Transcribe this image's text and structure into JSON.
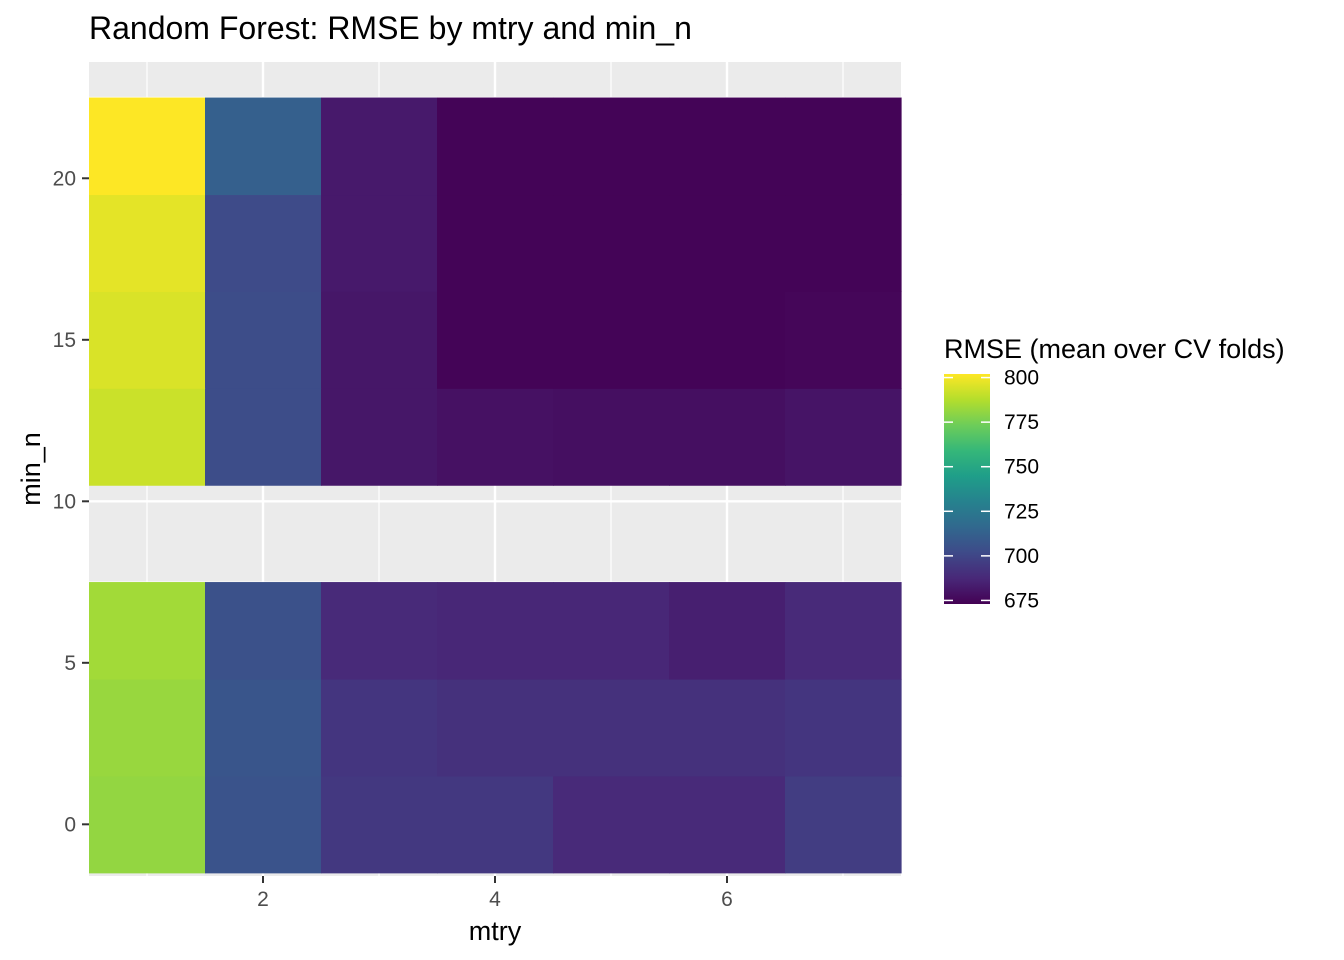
{
  "chart_data": {
    "type": "heatmap",
    "title": "Random Forest: RMSE by mtry and min_n",
    "xlabel": "mtry",
    "ylabel": "min_n",
    "xlim": [
      0.5,
      7.5
    ],
    "ylim": [
      -1.6,
      23.6
    ],
    "x_ticks": [
      2,
      4,
      6
    ],
    "y_ticks": [
      0,
      5,
      10,
      15,
      20
    ],
    "grid": true,
    "colormap": "viridis",
    "color_range": [
      673,
      802
    ],
    "legend": {
      "title": "RMSE (mean over CV folds)",
      "ticks": [
        675,
        700,
        725,
        750,
        775,
        800
      ],
      "placement": "right"
    },
    "x": [
      1,
      2,
      3,
      4,
      5,
      6,
      7
    ],
    "rows": [
      {
        "min_n": 0,
        "values": [
          781,
          706,
          694,
          694,
          688,
          688,
          696
        ]
      },
      {
        "min_n": 3,
        "values": [
          782,
          707,
          693,
          691,
          691,
          691,
          693
        ]
      },
      {
        "min_n": 6,
        "values": [
          784,
          705,
          688,
          687,
          687,
          684,
          688
        ]
      },
      {
        "min_n": 12,
        "values": [
          792,
          703,
          681,
          679,
          678,
          678,
          680
        ]
      },
      {
        "min_n": 15,
        "values": [
          795,
          703,
          681,
          674,
          674,
          674,
          675
        ]
      },
      {
        "min_n": 18,
        "values": [
          797,
          702,
          682,
          674,
          674,
          674,
          674
        ]
      },
      {
        "min_n": 21,
        "values": [
          802,
          712,
          682,
          674,
          674,
          674,
          674
        ]
      }
    ]
  }
}
